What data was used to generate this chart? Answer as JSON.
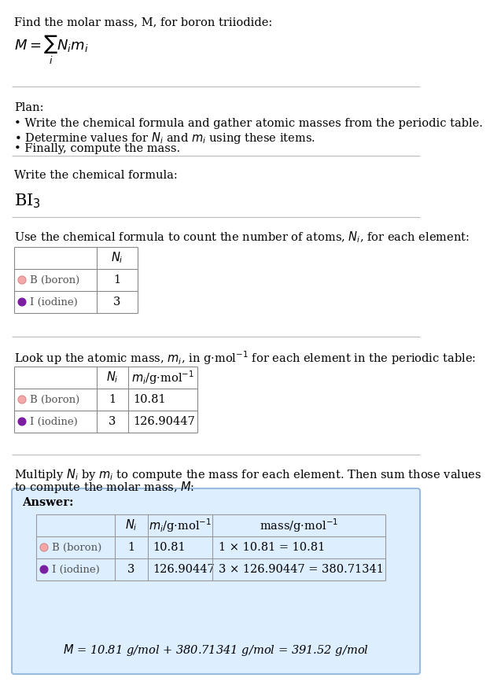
{
  "title_line": "Find the molar mass, M, for boron triiodide:",
  "formula_latex": "$M = \\sum_i N_i m_i$",
  "plan_header": "Plan:",
  "plan_bullets": [
    "• Write the chemical formula and gather atomic masses from the periodic table.",
    "• Determine values for $N_i$ and $m_i$ using these items.",
    "• Finally, compute the mass."
  ],
  "formula_label": "Write the chemical formula:",
  "chemical_formula": "BI",
  "chemical_formula_sub": "3",
  "count_label": "Use the chemical formula to count the number of atoms, $N_i$, for each element:",
  "lookup_label": "Look up the atomic mass, $m_i$, in g·mol$^{-1}$ for each element in the periodic table:",
  "multiply_label_1": "Multiply $N_i$ by $m_i$ to compute the mass for each element. Then sum those values",
  "multiply_label_2": "to compute the molar mass, $M$:",
  "elements": [
    "B (boron)",
    "I (iodine)"
  ],
  "N_i": [
    "1",
    "3"
  ],
  "m_i": [
    "10.81",
    "126.90447"
  ],
  "mass_expr": [
    "1 × 10.81 = 10.81",
    "3 × 126.90447 = 380.71341"
  ],
  "boron_color": "#f4a9a8",
  "boron_edge": "#d48a89",
  "iodine_color": "#7b1fa2",
  "answer_bg": "#ddeeff",
  "answer_border": "#99bbdd",
  "final_answer": "$M$ = 10.81 g/mol + 380.71341 g/mol = 391.52 g/mol",
  "bg_color": "#ffffff",
  "text_color": "#000000",
  "gray_text": "#555555",
  "sep_color": "#bbbbbb",
  "table_color": "#888888"
}
